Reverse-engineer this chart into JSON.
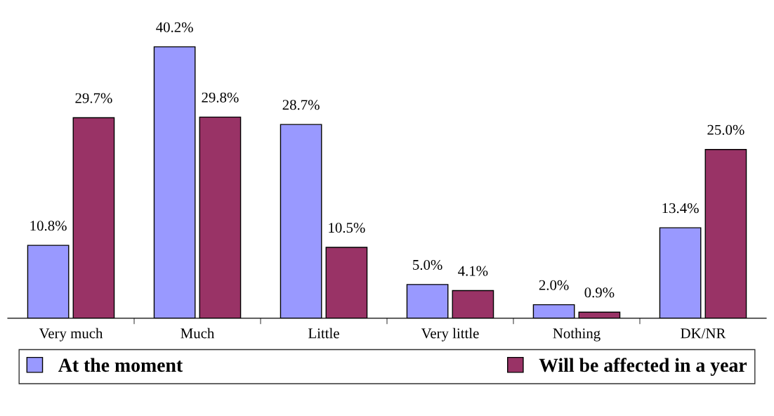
{
  "chart_data": {
    "type": "bar",
    "categories": [
      "Very much",
      "Much",
      "Little",
      "Very little",
      "Nothing",
      "DK/NR"
    ],
    "series": [
      {
        "name": "At the moment",
        "color": "#9999ff",
        "values": [
          10.8,
          40.2,
          28.7,
          5.0,
          2.0,
          13.4
        ],
        "value_labels": [
          "10.8%",
          "40.2%",
          "28.7%",
          "5.0%",
          "2.0%",
          "13.4%"
        ]
      },
      {
        "name": "Will be affected in a year",
        "color": "#993366",
        "values": [
          29.7,
          29.8,
          10.5,
          4.1,
          0.9,
          25.0
        ],
        "value_labels": [
          "29.7%",
          "29.8%",
          "10.5%",
          "4.1%",
          "0.9%",
          "25.0%"
        ]
      }
    ],
    "legend": "bottom",
    "grid": false
  }
}
